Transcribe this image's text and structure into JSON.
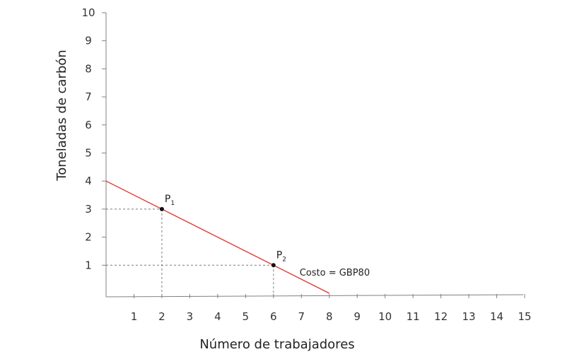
{
  "chart_data": {
    "type": "line",
    "xlabel": "Número de trabajadores",
    "ylabel": "Toneladas de carbón",
    "xlim": [
      0,
      15
    ],
    "ylim": [
      0,
      10
    ],
    "x_ticks": [
      "1",
      "2",
      "3",
      "4",
      "5",
      "6",
      "7",
      "8",
      "9",
      "10",
      "11",
      "12",
      "13",
      "14",
      "15"
    ],
    "y_ticks": [
      "1",
      "2",
      "3",
      "4",
      "5",
      "6",
      "7",
      "8",
      "9",
      "10"
    ],
    "series": [
      {
        "label": "Costo = GBP80",
        "color": "#e0332e",
        "x": [
          0,
          8
        ],
        "y": [
          4,
          0
        ]
      }
    ],
    "points": [
      {
        "label": "P",
        "subscript": "1",
        "x": 2,
        "y": 3
      },
      {
        "label": "P",
        "subscript": "2",
        "x": 6,
        "y": 1
      }
    ],
    "grid": false
  }
}
